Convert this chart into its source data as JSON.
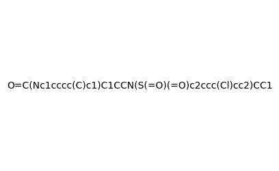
{
  "smiles": "O=C(Nc1cccc(C)c1)C1CCN(S(=O)(=O)c2ccc(Cl)cc2)CC1",
  "image_size": 300,
  "background_color": "#e8e8e8",
  "atom_colors": {
    "N": "#0000ff",
    "O": "#ff0000",
    "S": "#cccc00",
    "Cl": "#00aa00",
    "H_label": "#008080"
  }
}
